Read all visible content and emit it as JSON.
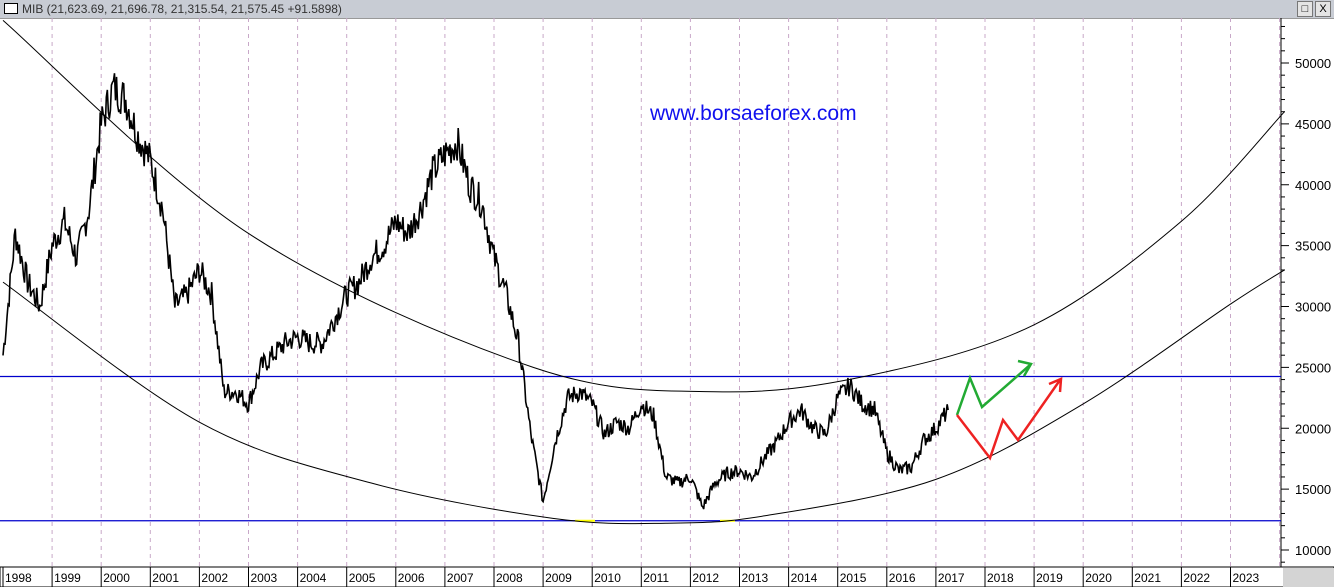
{
  "window": {
    "title": "MIB (21,623.69, 21,696.78, 21,315.54, 21,575.45 +91.5898)",
    "restore_label": "□",
    "close_label": "X"
  },
  "watermark": "www.borsaeforex.com",
  "chart_data": {
    "type": "line",
    "title": "MIB (21,623.69, 21,696.78, 21,315.54, 21,575.45 +91.5898)",
    "xlabel": "",
    "ylabel": "",
    "xlim": [
      1998,
      2024.1
    ],
    "ylim": [
      8500,
      54000
    ],
    "grid": "vertical dashed at years",
    "x_ticks": [
      "1998",
      "1999",
      "2000",
      "2001",
      "2002",
      "2003",
      "2004",
      "2005",
      "2006",
      "2007",
      "2008",
      "2009",
      "2010",
      "2011",
      "2012",
      "2013",
      "2014",
      "2015",
      "2016",
      "2017",
      "2018",
      "2019",
      "2020",
      "2021",
      "2022",
      "2023"
    ],
    "y_ticks": [
      10000,
      15000,
      20000,
      25000,
      30000,
      35000,
      40000,
      45000,
      50000
    ],
    "price_series_quarterly": {
      "start": 1998.0,
      "step": 0.25,
      "values": [
        26000,
        36000,
        32000,
        30000,
        35000,
        37000,
        34000,
        38000,
        45000,
        48000,
        47000,
        44000,
        42000,
        38000,
        30000,
        31000,
        33000,
        31000,
        23000,
        23000,
        22000,
        25000,
        26000,
        27000,
        27500,
        27000,
        27000,
        29000,
        31000,
        32000,
        34000,
        35000,
        37000,
        36000,
        38000,
        41000,
        42500,
        43500,
        40000,
        38500,
        34000,
        31000,
        27000,
        19500,
        14000,
        19000,
        22500,
        23000,
        22000,
        19500,
        20500,
        20000,
        22000,
        21000,
        16000,
        15500,
        16000,
        13500,
        15500,
        16300,
        16500,
        16000,
        17500,
        18800,
        20500,
        21500,
        20000,
        19500,
        22500,
        23500,
        22000,
        21500,
        18000,
        16500,
        16800,
        19000,
        20000,
        21500
      ]
    },
    "upper_arc": [
      [
        1998,
        53500
      ],
      [
        2003,
        36000
      ],
      [
        2008.8,
        25000
      ],
      [
        2012.5,
        23000
      ],
      [
        2015.6,
        24300
      ],
      [
        2019,
        28500
      ],
      [
        2022,
        37000
      ],
      [
        2024.1,
        46000
      ]
    ],
    "lower_arc": [
      [
        1998,
        32000
      ],
      [
        2002,
        20500
      ],
      [
        2005.5,
        15500
      ],
      [
        2009.2,
        12600
      ],
      [
        2011.5,
        12200
      ],
      [
        2013.5,
        12800
      ],
      [
        2017,
        15800
      ],
      [
        2020,
        22000
      ],
      [
        2023,
        30200
      ],
      [
        2024.1,
        33000
      ]
    ],
    "horizontal_lines": [
      24250,
      12400
    ],
    "colors": {
      "price": "#000000",
      "arcs": "#000000",
      "hlines": "#0000cc",
      "highlight": "#ffff00",
      "bull_arrow": "#22aa33",
      "bear_arrow": "#ee2222",
      "grid": "#c8a8c8"
    }
  }
}
